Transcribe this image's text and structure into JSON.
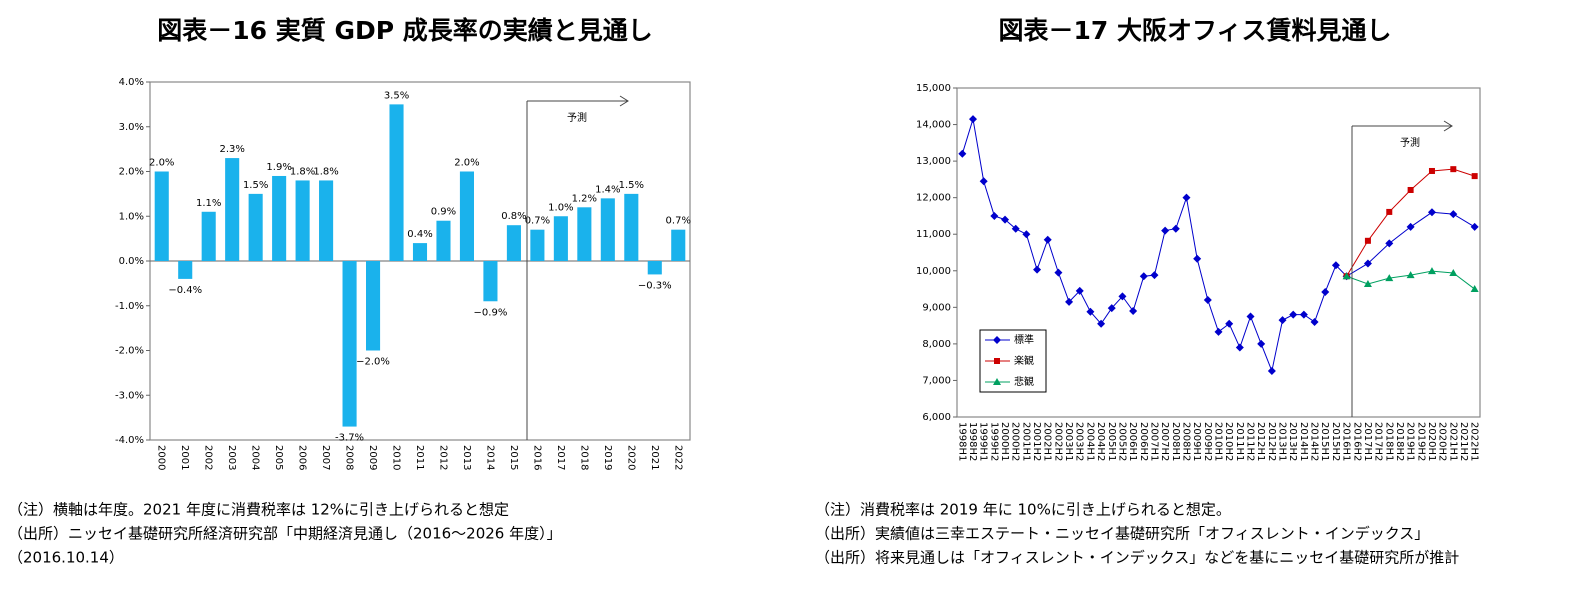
{
  "chart_data": [
    {
      "type": "bar",
      "title": "図表－16  実質 GDP 成長率の実績と見通し",
      "categories": [
        "2000",
        "2001",
        "2002",
        "2003",
        "2004",
        "2005",
        "2006",
        "2007",
        "2008",
        "2009",
        "2010",
        "2011",
        "2012",
        "2013",
        "2014",
        "2015",
        "2016",
        "2017",
        "2018",
        "2019",
        "2020",
        "2021",
        "2022"
      ],
      "values": [
        2.0,
        -0.4,
        1.1,
        2.3,
        1.5,
        1.9,
        1.8,
        1.8,
        -3.7,
        -2.0,
        3.5,
        0.4,
        0.9,
        2.0,
        -0.9,
        0.8,
        0.7,
        1.0,
        1.2,
        1.4,
        1.5,
        -0.3,
        0.7
      ],
      "value_labels": [
        "2.0%",
        "−0.4%",
        "1.1%",
        "2.3%",
        "1.5%",
        "1.9%",
        "1.8%",
        "1.8%",
        "-3.7%",
        "−2.0%",
        "3.5%",
        "0.4%",
        "0.9%",
        "2.0%",
        "−0.9%",
        "0.8%",
        "0.7%",
        "1.0%",
        "1.2%",
        "1.4%",
        "1.5%",
        "−0.3%",
        "0.7%"
      ],
      "color": "#1ab2ec",
      "ylim": [
        -4,
        4
      ],
      "yticks": [
        {
          "value": -4,
          "label": "-4.0%"
        },
        {
          "value": -3,
          "label": "-3.0%"
        },
        {
          "value": -2,
          "label": "-2.0%"
        },
        {
          "value": -1,
          "label": "-1.0%"
        },
        {
          "value": 0,
          "label": "0.0%"
        },
        {
          "value": 1,
          "label": "1.0%"
        },
        {
          "value": 2,
          "label": "2.0%"
        },
        {
          "value": 3,
          "label": "3.0%"
        },
        {
          "value": 4,
          "label": "4.0%"
        }
      ],
      "annotation": "予測",
      "notes": [
        "（注）横軸は年度。2021 年度に消費税率は 12%に引き上げられると想定",
        "（出所）ニッセイ基礎研究所経済研究部「中期経済見通し（2016～2026 年度）」",
        "（2016.10.14）"
      ]
    },
    {
      "type": "line",
      "title": "図表－17  大阪オフィス賃料見通し",
      "categories": [
        "1998H1",
        "1998H2",
        "1999H1",
        "1999H2",
        "2000H1",
        "2000H2",
        "2001H1",
        "2001H2",
        "2002H1",
        "2002H2",
        "2003H1",
        "2003H2",
        "2004H1",
        "2004H2",
        "2005H1",
        "2005H2",
        "2006H1",
        "2006H2",
        "2007H1",
        "2007H2",
        "2008H1",
        "2008H2",
        "2009H1",
        "2009H2",
        "2010H1",
        "2010H2",
        "2011H1",
        "2011H2",
        "2012H1",
        "2012H2",
        "2013H1",
        "2013H2",
        "2014H1",
        "2014H2",
        "2015H1",
        "2015H2",
        "2016H1",
        "2016H2",
        "2017H1",
        "2017H2",
        "2018H1",
        "2018H2",
        "2019H1",
        "2019H2",
        "2020H1",
        "2020H2",
        "2021H1",
        "2021H2",
        "2022H1"
      ],
      "series": [
        {
          "name": "標準",
          "color": "#0000cc",
          "marker": "diamond",
          "values": [
            13200,
            14150,
            12450,
            11500,
            11400,
            11150,
            11000,
            10030,
            10850,
            9950,
            9150,
            9450,
            8880,
            8550,
            8980,
            9300,
            8900,
            9850,
            9880,
            11100,
            11150,
            12000,
            10330,
            9200,
            8330,
            8550,
            7900,
            8750,
            8000,
            7260,
            8650,
            8800,
            8800,
            8600,
            9420,
            10150,
            9850,
            null,
            10200,
            null,
            10750,
            null,
            11200,
            null,
            11600,
            null,
            11550,
            null,
            11200
          ]
        },
        {
          "name": "楽観",
          "color": "#cc0000",
          "marker": "square",
          "values": [
            null,
            null,
            null,
            null,
            null,
            null,
            null,
            null,
            null,
            null,
            null,
            null,
            null,
            null,
            null,
            null,
            null,
            null,
            null,
            null,
            null,
            null,
            null,
            null,
            null,
            null,
            null,
            null,
            null,
            null,
            null,
            null,
            null,
            null,
            null,
            null,
            9850,
            null,
            10820,
            null,
            11610,
            null,
            12210,
            null,
            12730,
            null,
            12780,
            null,
            12590
          ]
        },
        {
          "name": "悲観",
          "color": "#00a060",
          "marker": "triangle",
          "values": [
            null,
            null,
            null,
            null,
            null,
            null,
            null,
            null,
            null,
            null,
            null,
            null,
            null,
            null,
            null,
            null,
            null,
            null,
            null,
            null,
            null,
            null,
            null,
            null,
            null,
            null,
            null,
            null,
            null,
            null,
            null,
            null,
            null,
            null,
            null,
            null,
            9850,
            null,
            9640,
            null,
            9800,
            null,
            9880,
            null,
            9990,
            null,
            9940,
            null,
            9500
          ]
        }
      ],
      "ylim": [
        6000,
        15000
      ],
      "yticks": [
        {
          "value": 6000,
          "label": "6,000"
        },
        {
          "value": 7000,
          "label": "7,000"
        },
        {
          "value": 8000,
          "label": "8,000"
        },
        {
          "value": 9000,
          "label": "9,000"
        },
        {
          "value": 10000,
          "label": "10,000"
        },
        {
          "value": 11000,
          "label": "11,000"
        },
        {
          "value": 12000,
          "label": "12,000"
        },
        {
          "value": 13000,
          "label": "13,000"
        },
        {
          "value": 14000,
          "label": "14,000"
        },
        {
          "value": 15000,
          "label": "15,000"
        }
      ],
      "legend": "lower left",
      "annotation": "予測",
      "notes": [
        "（注）消費税率は 2019 年に 10%に引き上げられると想定。",
        "（出所）実績値は三幸エステート・ニッセイ基礎研究所「オフィスレント・インデックス」",
        "（出所）将来見通しは「オフィスレント・インデックス」などを基にニッセイ基礎研究所が推計"
      ]
    }
  ]
}
